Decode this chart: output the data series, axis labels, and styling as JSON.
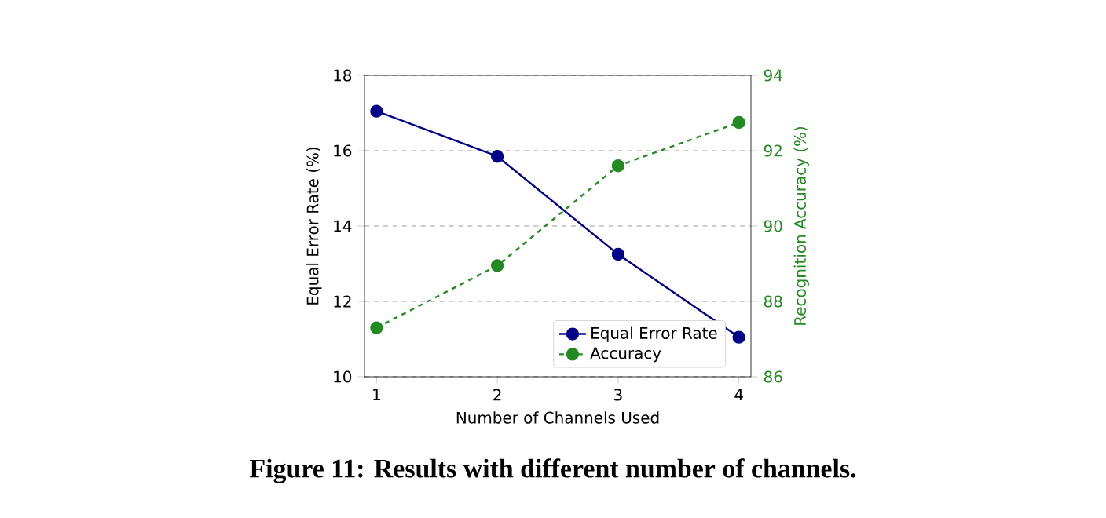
{
  "chart_data": {
    "type": "line",
    "xlabel": "Number of Channels Used",
    "ylabel": "Equal Error Rate (%)",
    "y2label": "Recognition Accuracy (%)",
    "x": [
      1,
      2,
      3,
      4
    ],
    "xlim": [
      0.9,
      4.1
    ],
    "xticks": [
      1,
      2,
      3,
      4
    ],
    "ylim": [
      10,
      18
    ],
    "yticks": [
      10,
      12,
      14,
      16,
      18
    ],
    "y2lim": [
      86,
      94
    ],
    "y2ticks": [
      86,
      88,
      90,
      92,
      94
    ],
    "series": [
      {
        "name": "Equal Error Rate",
        "color": "#00008b",
        "values": [
          17.05,
          15.85,
          13.25,
          11.05
        ],
        "line_style": "solid"
      },
      {
        "name": "Accuracy",
        "color": "#228b22",
        "values": [
          87.3,
          88.95,
          91.6,
          92.75
        ],
        "axis": "y2",
        "line_style": "dashed"
      }
    ],
    "marker": "circle",
    "grid": "y",
    "legend": "bottom right",
    "annotations": [
      "Figure 11: Results with different number of channels."
    ]
  }
}
